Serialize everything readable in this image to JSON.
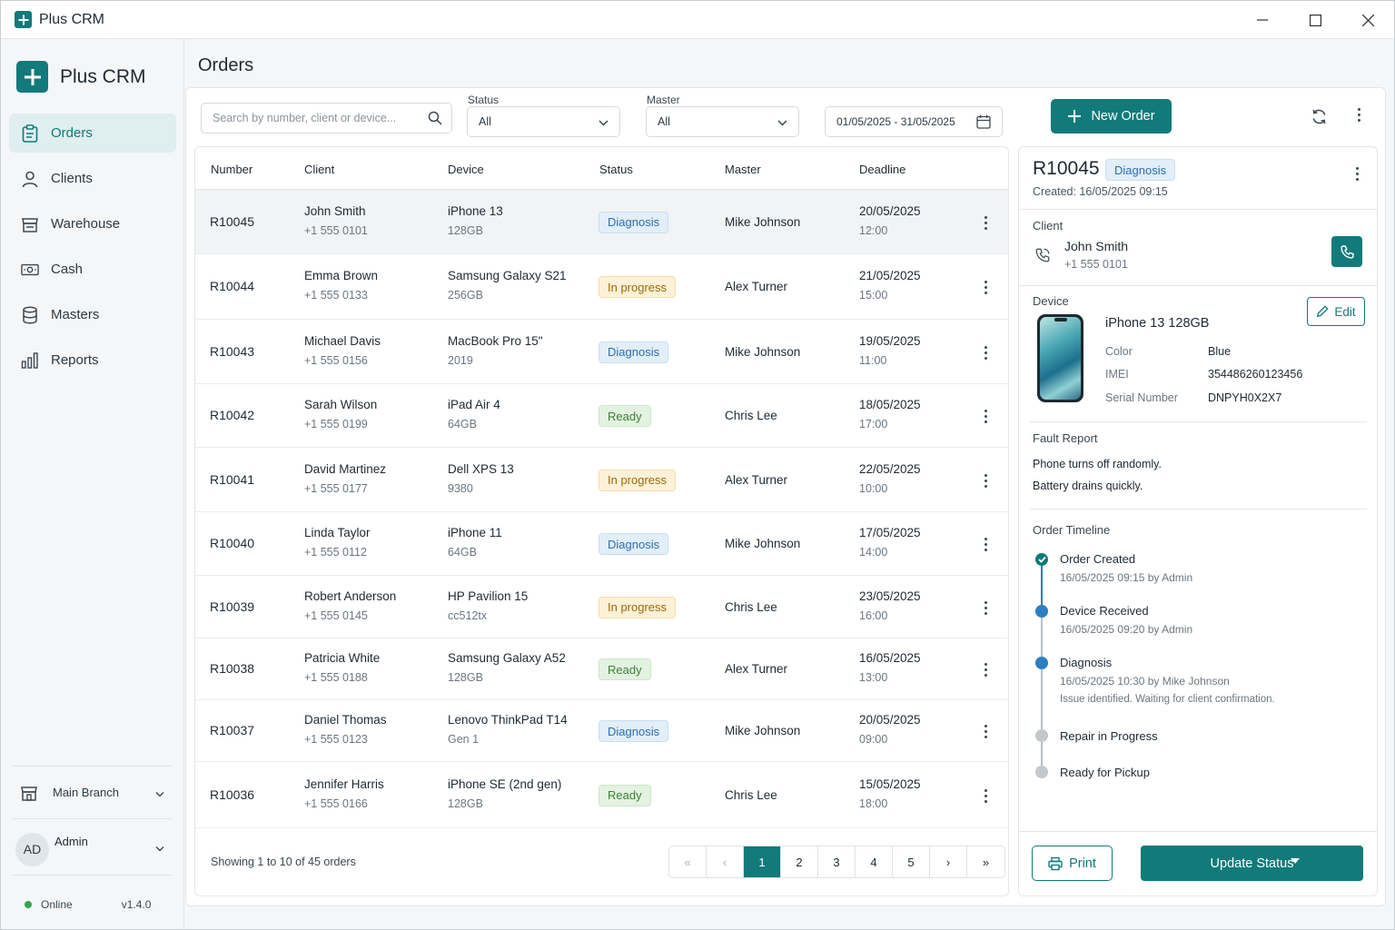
{
  "window": {
    "title": "Plus CRM"
  },
  "sidebar": {
    "brand": "Plus CRM",
    "items": [
      {
        "label": "Orders",
        "icon": "clipboard-icon",
        "active": true
      },
      {
        "label": "Clients",
        "icon": "user-icon"
      },
      {
        "label": "Warehouse",
        "icon": "store-icon"
      },
      {
        "label": "Cash",
        "icon": "cash-icon"
      },
      {
        "label": "Masters",
        "icon": "database-icon"
      },
      {
        "label": "Reports",
        "icon": "bar-chart-icon"
      }
    ],
    "branch": "Main Branch",
    "user": {
      "initials": "AD",
      "name": "Admin"
    },
    "status": "Online",
    "version": "v1.4.0"
  },
  "page": {
    "title": "Orders"
  },
  "toolbar": {
    "search_placeholder": "Search by number, client or device...",
    "status_label": "Status",
    "status_value": "All",
    "master_label": "Master",
    "master_value": "All",
    "date_range": "01/05/2025 - 31/05/2025",
    "new_order_label": "New Order"
  },
  "table": {
    "headers": [
      "Number",
      "Client",
      "Device",
      "Status",
      "Master",
      "Deadline"
    ],
    "rows": [
      {
        "number": "R10045",
        "client": "John Smith",
        "phone": "+1 555 0101",
        "device": "iPhone 13",
        "device_sub": "128GB",
        "status": "Diagnosis",
        "master": "Mike Johnson",
        "date": "20/05/2025",
        "time": "12:00"
      },
      {
        "number": "R10044",
        "client": "Emma Brown",
        "phone": "+1 555 0133",
        "device": "Samsung Galaxy S21",
        "device_sub": "256GB",
        "status": "In progress",
        "master": "Alex Turner",
        "date": "21/05/2025",
        "time": "15:00"
      },
      {
        "number": "R10043",
        "client": "Michael Davis",
        "phone": "+1 555 0156",
        "device": "MacBook Pro 15\"",
        "device_sub": "2019",
        "status": "Diagnosis",
        "master": "Mike Johnson",
        "date": "19/05/2025",
        "time": "11:00"
      },
      {
        "number": "R10042",
        "client": "Sarah Wilson",
        "phone": "+1 555 0199",
        "device": "iPad Air 4",
        "device_sub": "64GB",
        "status": "Ready",
        "master": "Chris Lee",
        "date": "18/05/2025",
        "time": "17:00"
      },
      {
        "number": "R10041",
        "client": "David Martinez",
        "phone": "+1 555 0177",
        "device": "Dell XPS 13",
        "device_sub": "9380",
        "status": "In progress",
        "master": "Alex Turner",
        "date": "22/05/2025",
        "time": "10:00"
      },
      {
        "number": "R10040",
        "client": "Linda Taylor",
        "phone": "+1 555 0112",
        "device": "iPhone 11",
        "device_sub": "64GB",
        "status": "Diagnosis",
        "master": "Mike Johnson",
        "date": "17/05/2025",
        "time": "14:00"
      },
      {
        "number": "R10039",
        "client": "Robert Anderson",
        "phone": "+1 555 0145",
        "device": "HP Pavilion 15",
        "device_sub": "cc512tx",
        "status": "In progress",
        "master": "Chris Lee",
        "date": "23/05/2025",
        "time": "16:00"
      },
      {
        "number": "R10038",
        "client": "Patricia White",
        "phone": "+1 555 0188",
        "device": "Samsung Galaxy A52",
        "device_sub": "128GB",
        "status": "Ready",
        "master": "Alex Turner",
        "date": "16/05/2025",
        "time": "13:00"
      },
      {
        "number": "R10037",
        "client": "Daniel Thomas",
        "phone": "+1 555 0123",
        "device": "Lenovo ThinkPad T14",
        "device_sub": "Gen 1",
        "status": "Diagnosis",
        "master": "Mike Johnson",
        "date": "20/05/2025",
        "time": "09:00"
      },
      {
        "number": "R10036",
        "client": "Jennifer Harris",
        "phone": "+1 555 0166",
        "device": "iPhone SE (2nd gen)",
        "device_sub": "128GB",
        "status": "Ready",
        "master": "Chris Lee",
        "date": "15/05/2025",
        "time": "18:00"
      }
    ],
    "showing": "Showing 1 to 10 of 45 orders",
    "pager": [
      "«",
      "‹",
      "1",
      "2",
      "3",
      "4",
      "5",
      "›",
      "»"
    ],
    "current_page": "1"
  },
  "detail": {
    "number": "R10045",
    "status": "Diagnosis",
    "created": "Created: 16/05/2025 09:15",
    "client_label": "Client",
    "client_name": "John Smith",
    "client_phone": "+1 555 0101",
    "device_label": "Device",
    "edit_label": "Edit",
    "device_name": "iPhone 13 128GB",
    "color_label": "Color",
    "color_value": "Blue",
    "imei_label": "IMEI",
    "imei_value": "354486260123456",
    "serial_label": "Serial Number",
    "serial_value": "DNPYH0X2X7",
    "fault_label": "Fault Report",
    "fault_line1": "Phone turns off randomly.",
    "fault_line2": "Battery drains quickly.",
    "timeline_label": "Order Timeline",
    "timeline": [
      {
        "title": "Order Created",
        "meta": "16/05/2025 09:15 by Admin",
        "state": "done"
      },
      {
        "title": "Device Received",
        "meta": "16/05/2025 09:20 by Admin",
        "state": "current"
      },
      {
        "title": "Diagnosis",
        "meta": "16/05/2025 10:30 by Mike Johnson",
        "note": "Issue identified. Waiting for client confirmation.",
        "state": "current"
      },
      {
        "title": "Repair in Progress",
        "state": "pending"
      },
      {
        "title": "Ready for Pickup",
        "state": "pending"
      }
    ],
    "print_label": "Print",
    "update_label": "Update Status"
  },
  "colors": {
    "accent": "#127a7a",
    "diagnosis": "#2b6fb0",
    "in_progress": "#9a6a08",
    "ready": "#3e7f35",
    "online": "#2fa84f"
  }
}
